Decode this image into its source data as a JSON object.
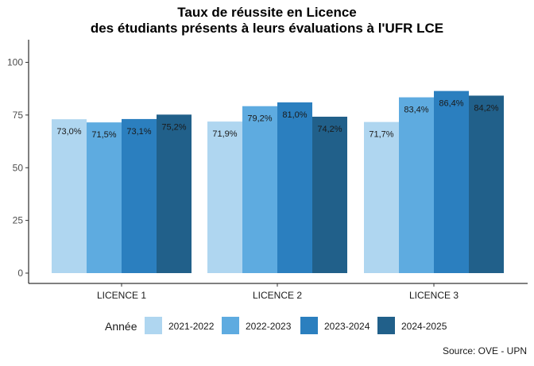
{
  "chart_data": {
    "type": "bar",
    "title": [
      "Taux de réussite en Licence",
      "des étudiants présents à leurs évaluations à l'UFR LCE"
    ],
    "categories": [
      "LICENCE 1",
      "LICENCE 2",
      "LICENCE 3"
    ],
    "series": [
      {
        "name": "2021-2022",
        "color": "#afd6f0",
        "values": [
          73.0,
          71.9,
          71.7
        ],
        "labels": [
          "73,0%",
          "71,9%",
          "71,7%"
        ]
      },
      {
        "name": "2022-2023",
        "color": "#5eabe0",
        "values": [
          71.5,
          79.2,
          83.4
        ],
        "labels": [
          "71,5%",
          "79,2%",
          "83,4%"
        ]
      },
      {
        "name": "2023-2024",
        "color": "#2b7fbf",
        "values": [
          73.1,
          81.0,
          86.4
        ],
        "labels": [
          "73,1%",
          "81,0%",
          "86,4%"
        ]
      },
      {
        "name": "2024-2025",
        "color": "#21608a",
        "values": [
          75.2,
          74.2,
          84.2
        ],
        "labels": [
          "75,2%",
          "74,2%",
          "84,2%"
        ]
      }
    ],
    "xlabel": "",
    "ylabel": "",
    "ylim": [
      0,
      110
    ],
    "yticks": [
      0,
      25,
      50,
      75,
      100
    ],
    "legend": {
      "title": "Année",
      "position": "bottom"
    },
    "grid": false
  },
  "caption": "Source: OVE - UPN"
}
